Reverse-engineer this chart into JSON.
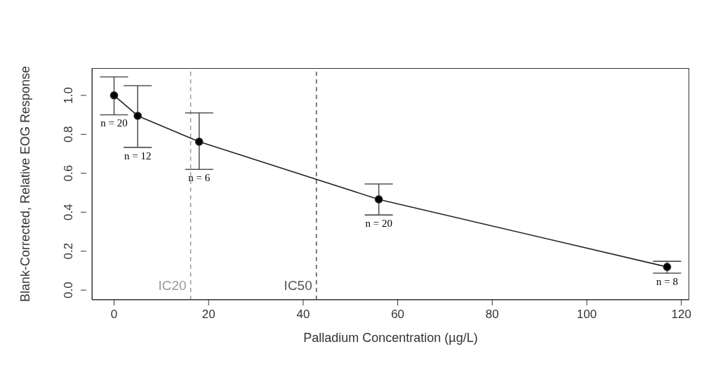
{
  "chart_data": {
    "type": "line",
    "xlabel": "Palladium Concentration (µg/L)",
    "ylabel": "Blank-Corrected, Relative EOG Response",
    "x": [
      0,
      5,
      18,
      56,
      117
    ],
    "series": [
      {
        "color": "#222222",
        "values": [
          1.0,
          0.895,
          0.762,
          0.466,
          0.119
        ],
        "errors": [
          [
            0.9,
            1.095
          ],
          [
            0.733,
            1.05
          ],
          [
            0.62,
            0.91
          ],
          [
            0.386,
            0.545
          ],
          [
            0.087,
            0.148
          ]
        ]
      }
    ],
    "marker": "circle",
    "line_style": "solid",
    "grid": false,
    "legend": false,
    "xlim": [
      -4.68,
      121.68
    ],
    "ylim": [
      -0.05,
      1.14
    ],
    "xticks": [
      0,
      20,
      40,
      60,
      80,
      100,
      120
    ],
    "yticks": [
      {
        "value": 0,
        "label": "0.0"
      },
      {
        "value": 0.2,
        "label": "0.2"
      },
      {
        "value": 0.4,
        "label": "0.4"
      },
      {
        "value": 0.6,
        "label": "0.6"
      },
      {
        "value": 0.8,
        "label": "0.8"
      },
      {
        "value": 1,
        "label": "1.0"
      }
    ],
    "ref_lines": [
      {
        "axis": "x",
        "value": 16.2,
        "label": "IC20",
        "color": "#999999",
        "line_style": "dashed"
      },
      {
        "axis": "x",
        "value": 42.8,
        "label": "IC50",
        "color": "#555555",
        "line_style": "dashed"
      }
    ],
    "annotations": [
      {
        "text": "n = 20",
        "x": 0,
        "y": 0.9
      },
      {
        "text": "n = 12",
        "x": 5,
        "y": 0.733
      },
      {
        "text": "n = 6",
        "x": 18,
        "y": 0.62
      },
      {
        "text": "n = 20",
        "x": 56,
        "y": 0.386
      },
      {
        "text": "n = 8",
        "x": 117,
        "y": 0.087
      }
    ]
  }
}
